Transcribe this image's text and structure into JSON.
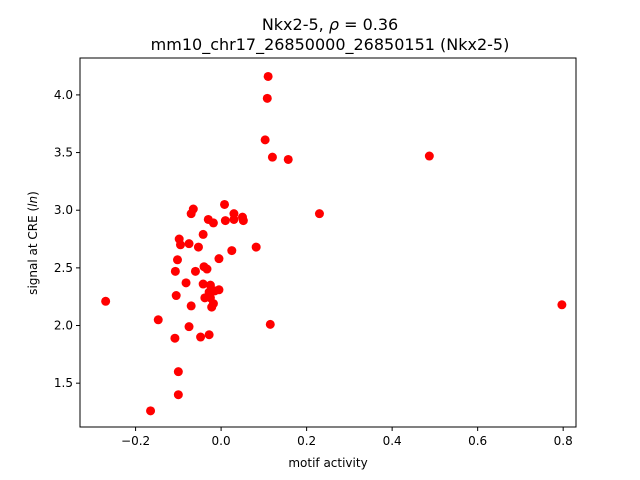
{
  "chart_data": {
    "type": "scatter",
    "title_line1": "Nkx2-5, ρ = 0.36",
    "title_line2": "mm10_chr17_26850000_26850151 (Nkx2-5)",
    "xlabel": "motif activity",
    "ylabel": "signal at CRE (ln)",
    "xlim": [
      -0.33,
      0.83
    ],
    "ylim": [
      1.12,
      4.32
    ],
    "xticks": [
      -0.2,
      0.0,
      0.2,
      0.4,
      0.6,
      0.8
    ],
    "xtick_labels": [
      "−0.2",
      "0.0",
      "0.2",
      "0.4",
      "0.6",
      "0.8"
    ],
    "yticks": [
      1.5,
      2.0,
      2.5,
      3.0,
      3.5,
      4.0
    ],
    "ytick_labels": [
      "1.5",
      "2.0",
      "2.5",
      "3.0",
      "3.5",
      "4.0"
    ],
    "marker_color": "#ff0000",
    "grid": false,
    "points": [
      {
        "x": 0.11,
        "y": 4.16
      },
      {
        "x": 0.108,
        "y": 3.97
      },
      {
        "x": 0.103,
        "y": 3.61
      },
      {
        "x": 0.12,
        "y": 3.46
      },
      {
        "x": 0.157,
        "y": 3.44
      },
      {
        "x": 0.487,
        "y": 3.47
      },
      {
        "x": 0.008,
        "y": 3.05
      },
      {
        "x": -0.065,
        "y": 3.01
      },
      {
        "x": -0.07,
        "y": 2.97
      },
      {
        "x": 0.23,
        "y": 2.97
      },
      {
        "x": 0.03,
        "y": 2.97
      },
      {
        "x": 0.05,
        "y": 2.94
      },
      {
        "x": -0.03,
        "y": 2.92
      },
      {
        "x": 0.03,
        "y": 2.92
      },
      {
        "x": 0.052,
        "y": 2.91
      },
      {
        "x": 0.01,
        "y": 2.91
      },
      {
        "x": -0.018,
        "y": 2.89
      },
      {
        "x": -0.042,
        "y": 2.79
      },
      {
        "x": -0.098,
        "y": 2.75
      },
      {
        "x": -0.095,
        "y": 2.7
      },
      {
        "x": -0.075,
        "y": 2.71
      },
      {
        "x": -0.053,
        "y": 2.68
      },
      {
        "x": 0.082,
        "y": 2.68
      },
      {
        "x": 0.025,
        "y": 2.65
      },
      {
        "x": -0.005,
        "y": 2.58
      },
      {
        "x": -0.102,
        "y": 2.57
      },
      {
        "x": -0.04,
        "y": 2.51
      },
      {
        "x": -0.033,
        "y": 2.49
      },
      {
        "x": -0.06,
        "y": 2.47
      },
      {
        "x": -0.107,
        "y": 2.47
      },
      {
        "x": -0.082,
        "y": 2.37
      },
      {
        "x": -0.042,
        "y": 2.36
      },
      {
        "x": -0.025,
        "y": 2.35
      },
      {
        "x": -0.015,
        "y": 2.3
      },
      {
        "x": -0.005,
        "y": 2.31
      },
      {
        "x": -0.028,
        "y": 2.29
      },
      {
        "x": -0.105,
        "y": 2.26
      },
      {
        "x": -0.038,
        "y": 2.24
      },
      {
        "x": -0.025,
        "y": 2.24
      },
      {
        "x": -0.018,
        "y": 2.19
      },
      {
        "x": -0.022,
        "y": 2.16
      },
      {
        "x": -0.07,
        "y": 2.17
      },
      {
        "x": -0.27,
        "y": 2.21
      },
      {
        "x": 0.797,
        "y": 2.18
      },
      {
        "x": -0.147,
        "y": 2.05
      },
      {
        "x": 0.115,
        "y": 2.01
      },
      {
        "x": -0.075,
        "y": 1.99
      },
      {
        "x": -0.028,
        "y": 1.92
      },
      {
        "x": -0.048,
        "y": 1.9
      },
      {
        "x": -0.108,
        "y": 1.89
      },
      {
        "x": -0.1,
        "y": 1.6
      },
      {
        "x": -0.1,
        "y": 1.4
      },
      {
        "x": -0.165,
        "y": 1.26
      }
    ]
  }
}
